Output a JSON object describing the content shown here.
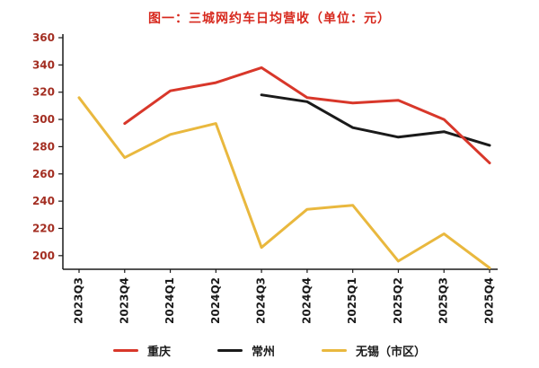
{
  "title": "图一：三城网约车日均营收（单位：元）",
  "colors": {
    "title": "#d7281d",
    "axis": "#1a1a1a",
    "y_tick_label": "#a32e22",
    "x_tick_label": "#1a1a1a",
    "legend_label": "#1a1a1a",
    "background": "#ffffff"
  },
  "chart_data": {
    "type": "line",
    "title": "图一：三城网约车日均营收（单位：元）",
    "categories": [
      "2023Q3",
      "2023Q4",
      "2024Q1",
      "2024Q2",
      "2024Q3",
      "2024Q4",
      "2025Q1",
      "2025Q2",
      "2025Q3",
      "2025Q4"
    ],
    "series": [
      {
        "name": "重庆",
        "color": "#d8372a",
        "values": [
          null,
          297,
          321,
          327,
          338,
          316,
          312,
          314,
          300,
          268
        ]
      },
      {
        "name": "常州",
        "color": "#1a1a1a",
        "values": [
          null,
          null,
          null,
          null,
          318,
          313,
          294,
          287,
          291,
          281
        ]
      },
      {
        "name": "无锡（市区）",
        "color": "#e9b83e",
        "values": [
          316,
          272,
          289,
          297,
          206,
          234,
          237,
          196,
          216,
          191
        ]
      }
    ],
    "xlabel": "",
    "ylabel": "",
    "ylim": [
      190,
      360
    ],
    "yticks": [
      200,
      220,
      240,
      260,
      280,
      300,
      320,
      340,
      360
    ],
    "grid": false,
    "legend_position": "bottom",
    "legend": [
      "重庆",
      "常州",
      "无锡（市区）"
    ]
  }
}
